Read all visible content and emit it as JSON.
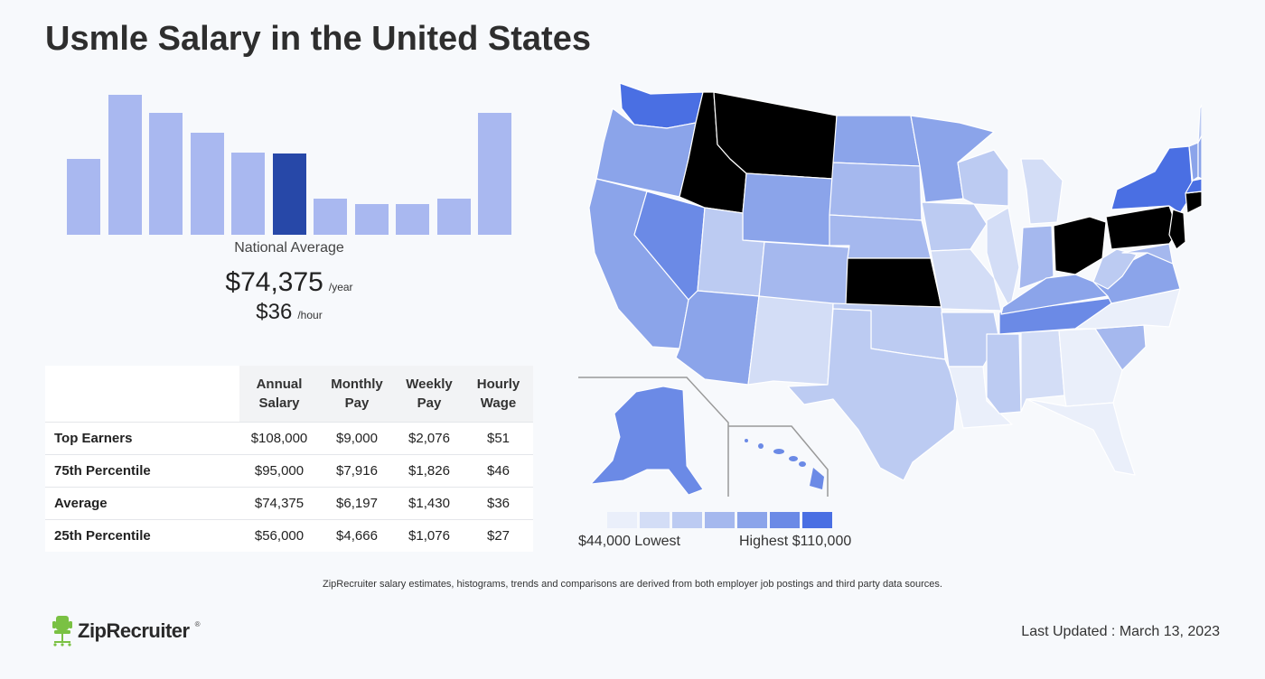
{
  "title": "Usmle Salary in the United States",
  "histogram": {
    "bars": [
      0.54,
      1.0,
      0.87,
      0.73,
      0.59,
      0.58,
      0.26,
      0.22,
      0.22,
      0.26,
      0.87
    ],
    "active_index": 5,
    "colors": {
      "bar": "#a9b8f0",
      "active": "#2748a8"
    }
  },
  "summary": {
    "label": "National Average",
    "annual": "$74,375",
    "annual_unit": "/year",
    "hourly": "$36",
    "hourly_unit": "/hour"
  },
  "table": {
    "headers": [
      [
        "Annual",
        "Salary"
      ],
      [
        "Monthly",
        "Pay"
      ],
      [
        "Weekly",
        "Pay"
      ],
      [
        "Hourly",
        "Wage"
      ]
    ],
    "rows": [
      {
        "label": "Top Earners",
        "annual": "$108,000",
        "monthly": "$9,000",
        "weekly": "$2,076",
        "hourly": "$51"
      },
      {
        "label": "75th Percentile",
        "annual": "$95,000",
        "monthly": "$7,916",
        "weekly": "$1,826",
        "hourly": "$46"
      },
      {
        "label": "Average",
        "annual": "$74,375",
        "monthly": "$6,197",
        "weekly": "$1,430",
        "hourly": "$36"
      },
      {
        "label": "25th Percentile",
        "annual": "$56,000",
        "monthly": "$4,666",
        "weekly": "$1,076",
        "hourly": "$27"
      }
    ]
  },
  "legend": {
    "colors": [
      "#eaeffa",
      "#d3ddf6",
      "#bccbf2",
      "#a5b8ee",
      "#8ba4ea",
      "#6b8ae6",
      "#4a6fe3"
    ],
    "low": "$44,000 Lowest",
    "high": "Highest $110,000"
  },
  "disclaimer": "ZipRecruiter salary estimates, histograms, trends and comparisons are derived from both employer job postings and third party data sources.",
  "brand": {
    "name": "ZipRecruiter",
    "tm": "®",
    "icon": "chair-icon",
    "color": "#7ac143"
  },
  "last_updated": "Last Updated : March 13, 2023"
}
